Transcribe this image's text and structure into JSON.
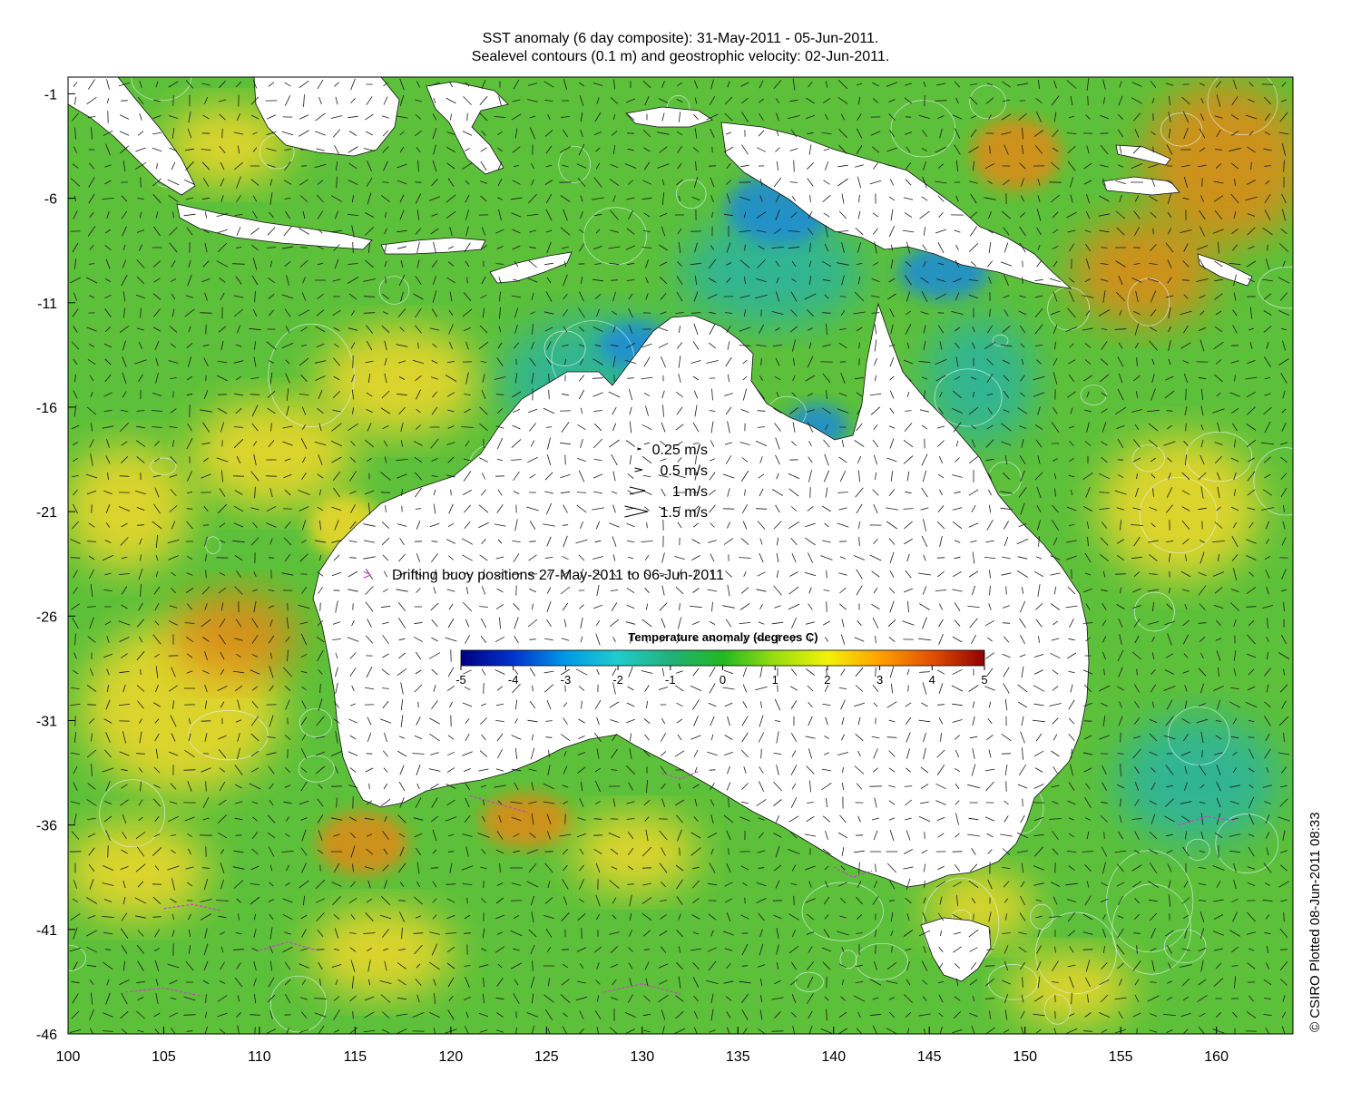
{
  "header": {
    "title_line1": "SST anomaly (6 day composite): 31-May-2011 - 05-Jun-2011.",
    "title_line2": "Sealevel contours (0.1 m) and geostrophic velocity: 02-Jun-2011."
  },
  "axes": {
    "x_ticks": [
      "100",
      "105",
      "110",
      "115",
      "120",
      "125",
      "130",
      "135",
      "140",
      "145",
      "150",
      "155",
      "160"
    ],
    "y_ticks": [
      "-1",
      "-6",
      "-11",
      "-16",
      "-21",
      "-26",
      "-31",
      "-36",
      "-41",
      "-46"
    ],
    "lon_range": [
      100,
      164
    ],
    "lat_range": [
      -46,
      -0.2
    ]
  },
  "velocity_legend": [
    {
      "label": "0.25 m/s",
      "speed": 0.25
    },
    {
      "label": "0.5 m/s",
      "speed": 0.5
    },
    {
      "label": "1 m/s",
      "speed": 1
    },
    {
      "label": "1.5 m/s",
      "speed": 1.5
    }
  ],
  "buoy_legend": {
    "marker": ">",
    "label": "Drifting buoy positions 27-May-2011 to 06-Jun-2011",
    "color": "#d23cd2"
  },
  "colorbar": {
    "title": "Temperature anomaly (degrees C)",
    "ticks": [
      "-5",
      "-4",
      "-3",
      "-2",
      "-1",
      "0",
      "1",
      "2",
      "3",
      "4",
      "5"
    ],
    "range": [
      -5,
      5
    ],
    "stops": [
      "#000080",
      "#0033cc",
      "#0099e6",
      "#22cccc",
      "#22b07a",
      "#22b822",
      "#99dd11",
      "#f2f20a",
      "#ffa000",
      "#e05000",
      "#900000"
    ]
  },
  "credit": "© CSIRO Plotted 08-Jun-2011 08:33",
  "colors": {
    "ocean_base": "#5cc03a",
    "warm_anomaly": "#f2d82a",
    "hot_anomaly": "#e08a14",
    "cool_anomaly": "#2ab4a0",
    "cold_coast": "#1f8ad8",
    "land": "#ffffff"
  }
}
